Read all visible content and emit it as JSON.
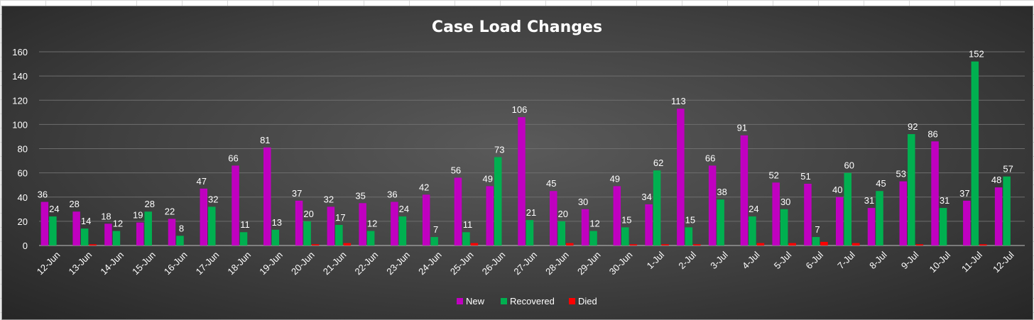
{
  "chart_data": {
    "type": "bar",
    "title": "Case Load Changes",
    "categories": [
      "12-Jun",
      "13-Jun",
      "14-Jun",
      "15-Jun",
      "16-Jun",
      "17-Jun",
      "18-Jun",
      "19-Jun",
      "20-Jun",
      "21-Jun",
      "22-Jun",
      "23-Jun",
      "24-Jun",
      "25-Jun",
      "26-Jun",
      "27-Jun",
      "28-Jun",
      "29-Jun",
      "30-Jun",
      "1-Jul",
      "2-Jul",
      "3-Jul",
      "4-Jul",
      "5-Jul",
      "6-Jul",
      "7-Jul",
      "8-Jul",
      "9-Jul",
      "10-Jul",
      "11-Jul",
      "12-Jul"
    ],
    "series": [
      {
        "name": "New",
        "color": "#c000c0",
        "values": [
          36,
          28,
          18,
          19,
          22,
          47,
          66,
          81,
          37,
          32,
          35,
          36,
          42,
          56,
          49,
          106,
          45,
          30,
          49,
          34,
          113,
          66,
          91,
          52,
          51,
          40,
          31,
          53,
          86,
          37,
          48
        ]
      },
      {
        "name": "Recovered",
        "color": "#00b050",
        "values": [
          24,
          14,
          12,
          28,
          8,
          32,
          11,
          13,
          20,
          17,
          12,
          24,
          7,
          11,
          73,
          21,
          20,
          12,
          15,
          62,
          15,
          38,
          24,
          30,
          7,
          60,
          45,
          92,
          31,
          152,
          57
        ]
      },
      {
        "name": "Died",
        "color": "#ff0000",
        "values": [
          0,
          1,
          0,
          0,
          0,
          0,
          0,
          0,
          1,
          2,
          0,
          0,
          0,
          2,
          0,
          0,
          2,
          0,
          1,
          1,
          1,
          0,
          2,
          2,
          3,
          2,
          0,
          1,
          0,
          1,
          0
        ]
      }
    ],
    "ylim": [
      0,
      160
    ],
    "yticks": [
      0,
      20,
      40,
      60,
      80,
      100,
      120,
      140,
      160
    ],
    "grid": true,
    "legend": "bottom",
    "data_labels": [
      "New",
      "Recovered"
    ]
  }
}
